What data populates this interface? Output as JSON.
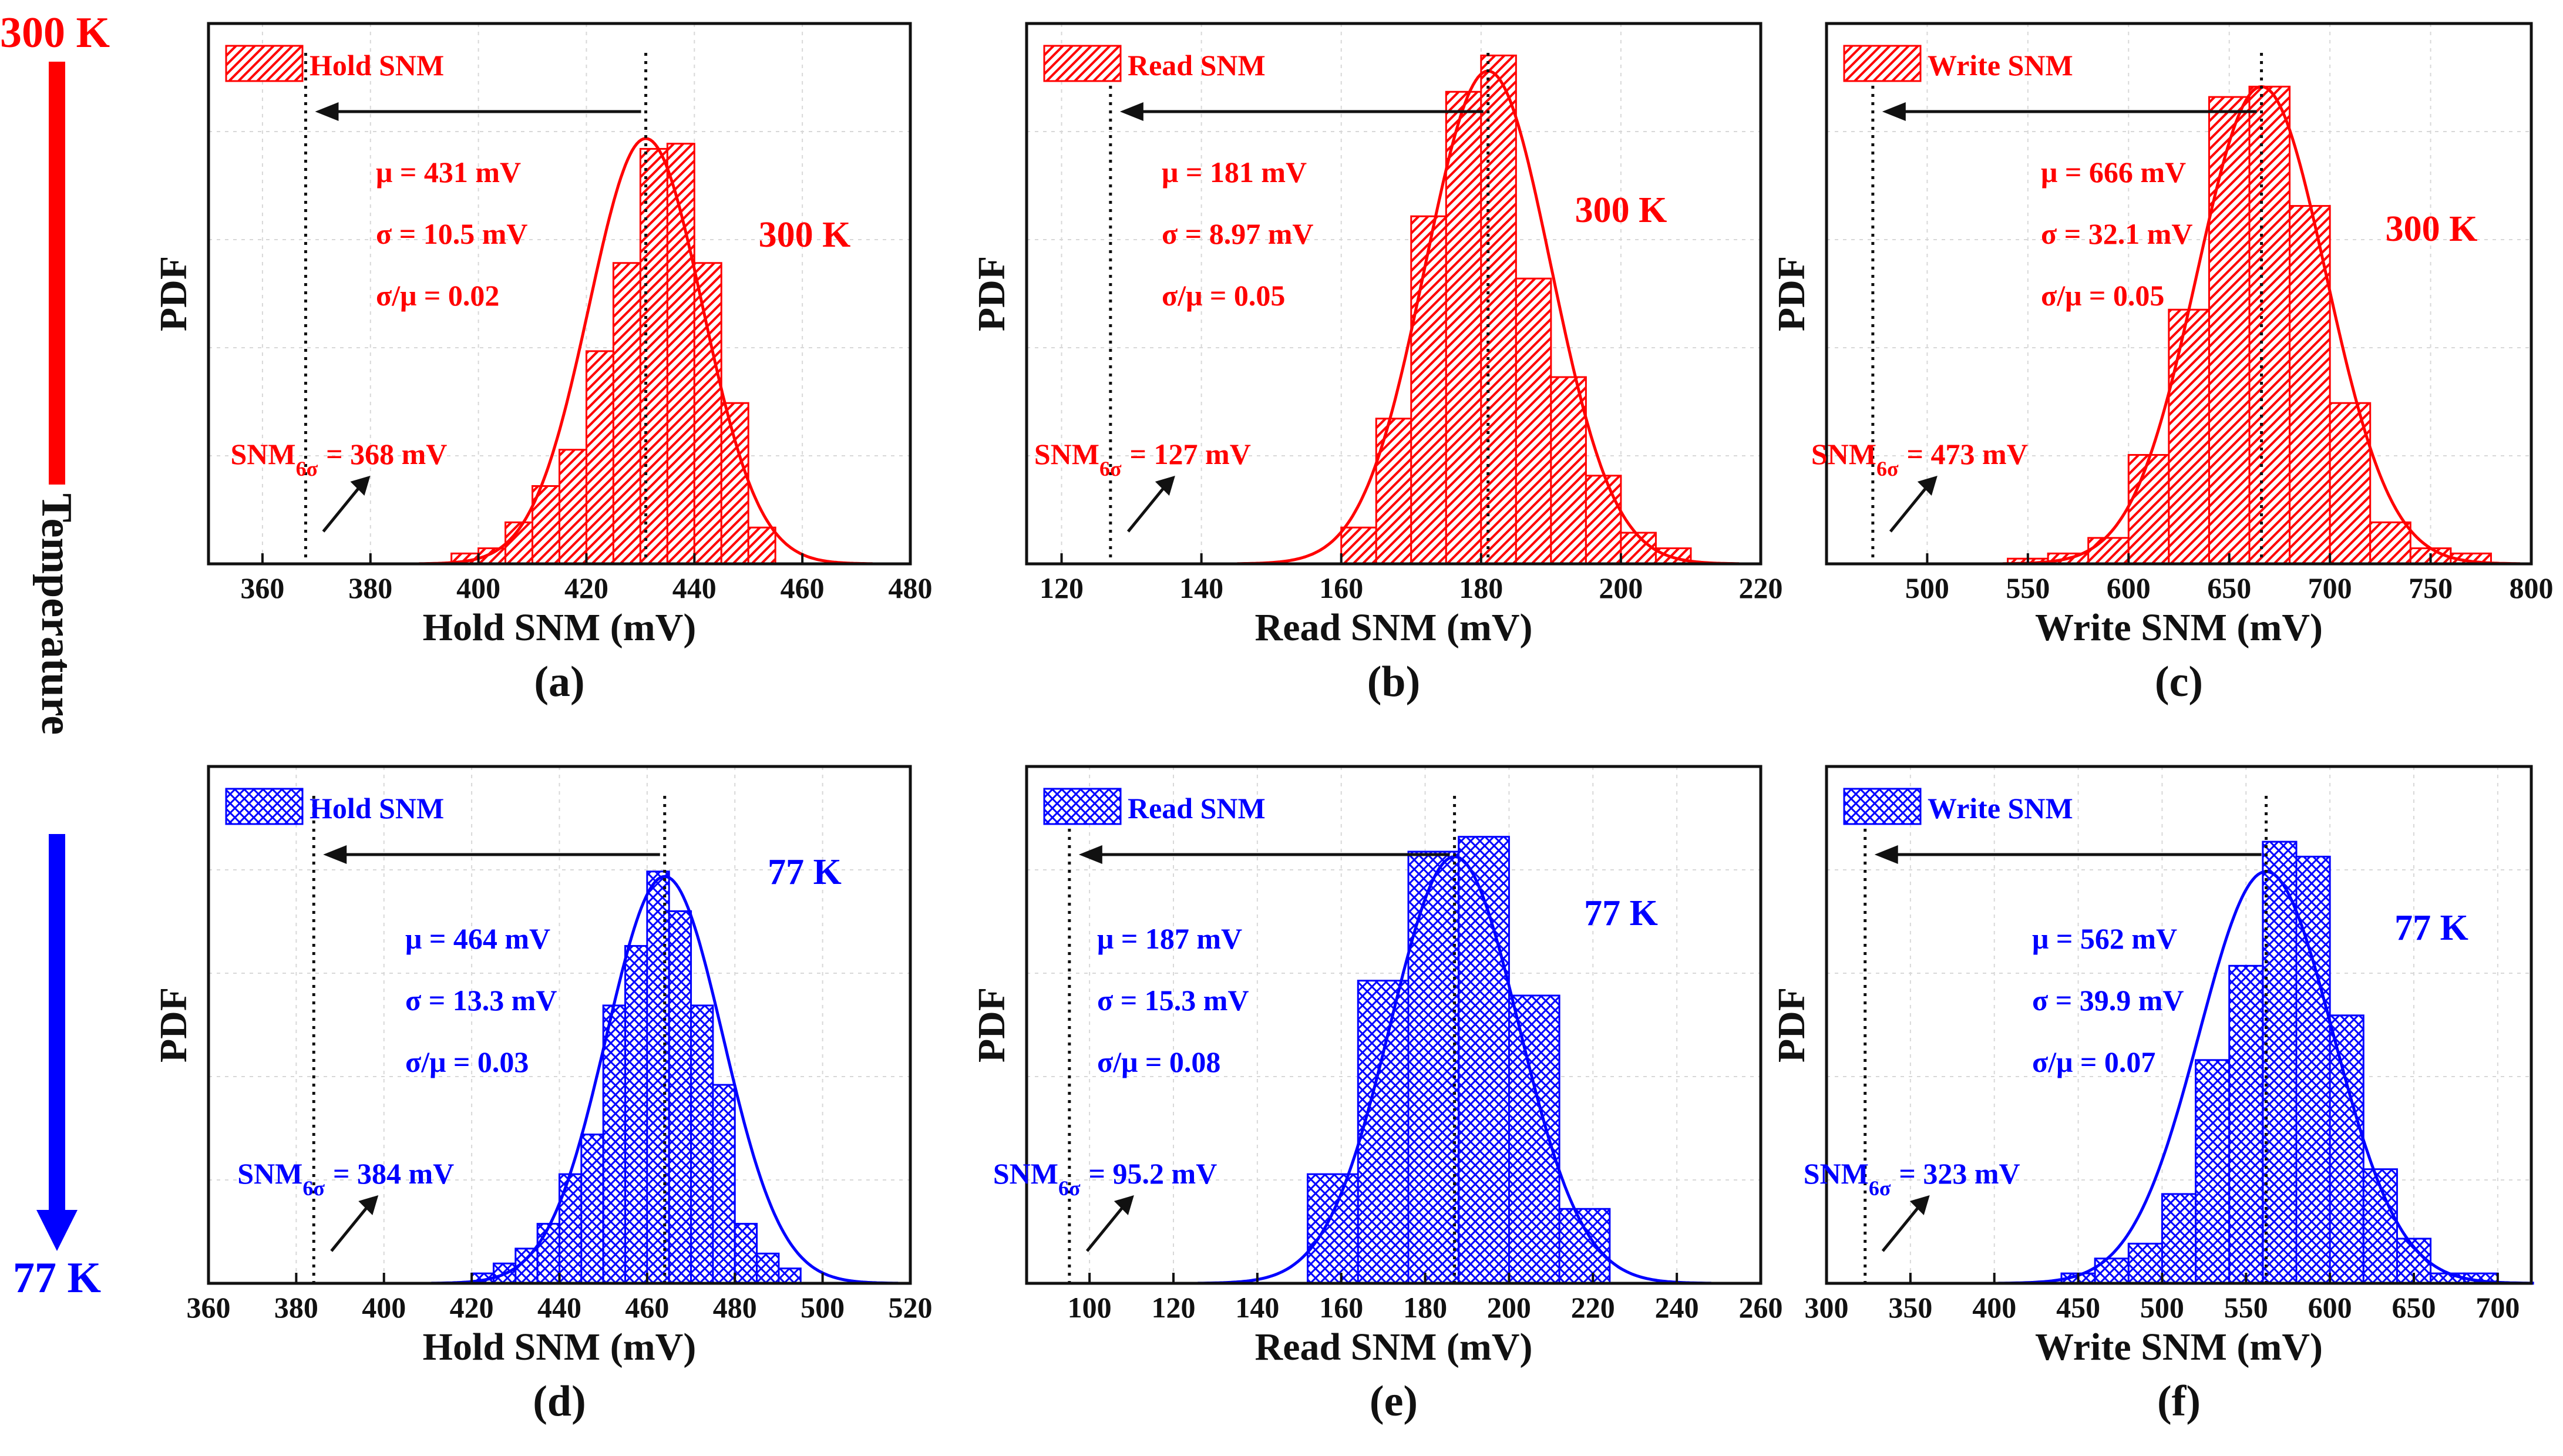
{
  "temperature_axis": {
    "label": "Temperature",
    "top": "300 K",
    "bottom": "77 K"
  },
  "colors": {
    "hot": "#ff0000",
    "cold": "#0000ff"
  },
  "chart_data": [
    {
      "id": "a",
      "panel_label": "(a)",
      "type": "bar",
      "metric": "hold",
      "color": "#ff0000",
      "hatch": "diagonal",
      "title": "",
      "xlabel": "Hold SNM (mV)",
      "ylabel": "PDF",
      "legend": "Hold SNM",
      "temperature": "300 K",
      "xlim": [
        350,
        480
      ],
      "xticks": [
        360,
        380,
        400,
        420,
        440,
        460,
        480
      ],
      "ylim": [
        0,
        1.0
      ],
      "bin_start": 395,
      "bin_width": 5,
      "values": [
        0.02,
        0.03,
        0.08,
        0.15,
        0.22,
        0.41,
        0.58,
        0.8,
        0.81,
        0.58,
        0.31,
        0.07
      ],
      "mu": "μ = 431 mV",
      "sigma": "σ = 10.5 mV",
      "cv": "σ/μ = 0.02",
      "snm_prefix": "SNM",
      "snm_sub": "6σ",
      "snm_value": "= 368 mV",
      "mean": 431,
      "sd": 10.5,
      "snm6": 368,
      "fit_peak": 0.82
    },
    {
      "id": "b",
      "panel_label": "(b)",
      "type": "bar",
      "metric": "read",
      "color": "#ff0000",
      "hatch": "diagonal",
      "title": "",
      "xlabel": "Read SNM (mV)",
      "ylabel": "PDF",
      "legend": "Read SNM",
      "temperature": "300 K",
      "xlim": [
        115,
        220
      ],
      "xticks": [
        120,
        140,
        160,
        180,
        200,
        220
      ],
      "ylim": [
        0,
        1.0
      ],
      "bin_start": 160,
      "bin_width": 5,
      "values": [
        0.07,
        0.28,
        0.67,
        0.91,
        0.98,
        0.55,
        0.36,
        0.17,
        0.06,
        0.03
      ],
      "mu": "μ = 181 mV",
      "sigma": "σ = 8.97 mV",
      "cv": "σ/μ = 0.05",
      "snm_prefix": "SNM",
      "snm_sub": "6σ",
      "snm_value": "= 127 mV",
      "mean": 181,
      "sd": 8.97,
      "snm6": 127,
      "fit_peak": 0.95
    },
    {
      "id": "c",
      "panel_label": "(c)",
      "type": "bar",
      "metric": "write",
      "color": "#ff0000",
      "hatch": "diagonal",
      "title": "",
      "xlabel": "Write SNM (mV)",
      "ylabel": "PDF",
      "legend": "Write SNM",
      "temperature": "300 K",
      "xlim": [
        450,
        800
      ],
      "xticks": [
        500,
        550,
        600,
        650,
        700,
        750,
        800
      ],
      "ylim": [
        0,
        1.0
      ],
      "bin_start": 540,
      "bin_width": 20,
      "values": [
        0.01,
        0.02,
        0.05,
        0.21,
        0.49,
        0.9,
        0.92,
        0.69,
        0.31,
        0.08,
        0.03,
        0.02
      ],
      "mu": "μ = 666 mV",
      "sigma": "σ = 32.1 mV",
      "cv": "σ/μ = 0.05",
      "snm_prefix": "SNM",
      "snm_sub": "6σ",
      "snm_value": "= 473 mV",
      "mean": 666,
      "sd": 32.1,
      "snm6": 473,
      "fit_peak": 0.92
    },
    {
      "id": "d",
      "panel_label": "(d)",
      "type": "bar",
      "metric": "hold",
      "color": "#0000ff",
      "hatch": "cross",
      "title": "",
      "xlabel": "Hold SNM (mV)",
      "ylabel": "PDF",
      "legend": "Hold SNM",
      "temperature": "77 K",
      "xlim": [
        360,
        520
      ],
      "xticks": [
        360,
        380,
        400,
        420,
        440,
        460,
        480,
        500,
        520
      ],
      "ylim": [
        0,
        1.0
      ],
      "bin_start": 420,
      "bin_width": 5,
      "values": [
        0.02,
        0.04,
        0.07,
        0.12,
        0.22,
        0.3,
        0.56,
        0.68,
        0.83,
        0.75,
        0.56,
        0.4,
        0.12,
        0.06,
        0.03
      ],
      "mu": "μ = 464 mV",
      "sigma": "σ = 13.3 mV",
      "cv": "σ/μ = 0.03",
      "snm_prefix": "SNM",
      "snm_sub": "6σ",
      "snm_value": "= 384 mV",
      "mean": 464,
      "sd": 13.3,
      "snm6": 384,
      "fit_peak": 0.82
    },
    {
      "id": "e",
      "panel_label": "(e)",
      "type": "bar",
      "metric": "read",
      "color": "#0000ff",
      "hatch": "cross",
      "title": "",
      "xlabel": "Read SNM (mV)",
      "ylabel": "PDF",
      "legend": "Read SNM",
      "temperature": "77 K",
      "xlim": [
        85,
        260
      ],
      "xticks": [
        100,
        120,
        140,
        160,
        180,
        200,
        220,
        240,
        260
      ],
      "ylim": [
        0,
        1.0
      ],
      "bin_start": 152,
      "bin_width": 12,
      "values": [
        0.22,
        0.61,
        0.87,
        0.9,
        0.58,
        0.15
      ],
      "mu": "μ = 187 mV",
      "sigma": "σ = 15.3 mV",
      "cv": "σ/μ = 0.08",
      "snm_prefix": "SNM",
      "snm_sub": "6σ",
      "snm_value": "= 95.2 mV",
      "mean": 187,
      "sd": 15.3,
      "snm6": 95.2,
      "fit_peak": 0.86
    },
    {
      "id": "f",
      "panel_label": "(f)",
      "type": "bar",
      "metric": "write",
      "color": "#0000ff",
      "hatch": "cross",
      "title": "",
      "xlabel": "Write SNM (mV)",
      "ylabel": "PDF",
      "legend": "Write SNM",
      "temperature": "77 K",
      "xlim": [
        300,
        720
      ],
      "xticks": [
        300,
        350,
        400,
        450,
        500,
        550,
        600,
        650,
        700
      ],
      "ylim": [
        0,
        1.0
      ],
      "bin_start": 440,
      "bin_width": 20,
      "values": [
        0.02,
        0.05,
        0.08,
        0.18,
        0.45,
        0.64,
        0.89,
        0.86,
        0.54,
        0.23,
        0.09,
        0.02,
        0.02
      ],
      "mu": "μ = 562 mV",
      "sigma": "σ = 39.9 mV",
      "cv": "σ/μ = 0.07",
      "snm_prefix": "SNM",
      "snm_sub": "6σ",
      "snm_value": "= 323 mV",
      "mean": 562,
      "sd": 39.9,
      "snm6": 323,
      "fit_peak": 0.83
    }
  ]
}
